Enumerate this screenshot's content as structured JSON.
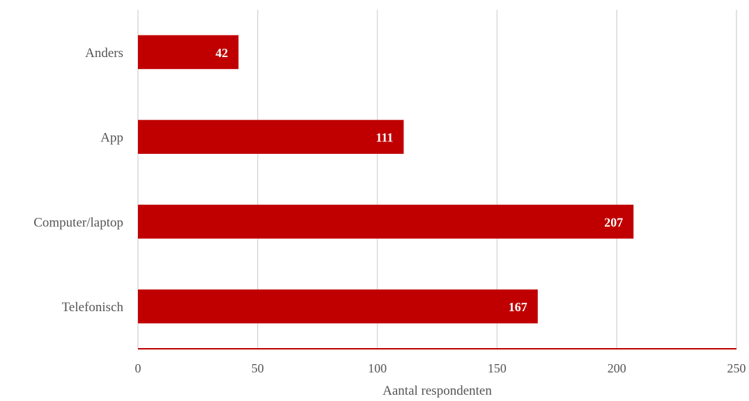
{
  "chart_data": {
    "type": "bar",
    "orientation": "horizontal",
    "categories": [
      "Anders",
      "App",
      "Computer/laptop",
      "Telefonisch"
    ],
    "values": [
      42,
      111,
      207,
      167
    ],
    "xlabel": "Aantal respondenten",
    "ylabel": "",
    "xlim": [
      0,
      250
    ],
    "xticks": [
      "0",
      "50",
      "100",
      "150",
      "200",
      "250"
    ],
    "grid": true,
    "data_labels": true,
    "bar_color": "#c00000",
    "baseline_color": "#c00000"
  }
}
